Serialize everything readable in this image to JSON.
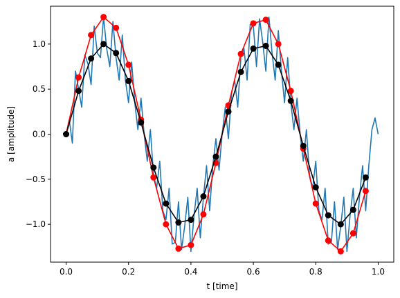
{
  "chart_data": {
    "type": "line",
    "title": "",
    "xlabel": "t [time]",
    "ylabel": "a [amplitude]",
    "xlim": [
      -0.05,
      1.05
    ],
    "ylim": [
      -1.42,
      1.42
    ],
    "xticks": [
      0.0,
      0.2,
      0.4,
      0.6,
      0.8,
      1.0
    ],
    "xtick_labels": [
      "0.0",
      "0.2",
      "0.4",
      "0.6",
      "0.8",
      "1.0"
    ],
    "yticks": [
      -1.0,
      -0.5,
      0.0,
      0.5,
      1.0
    ],
    "ytick_labels": [
      "−1.0",
      "−0.5",
      "0.0",
      "0.5",
      "1.0"
    ],
    "grid": false,
    "legend": "none",
    "series": [
      {
        "style": "line",
        "color": "#1f77b4",
        "x": [
          0.0,
          0.01,
          0.02,
          0.03,
          0.04,
          0.05,
          0.06,
          0.07,
          0.08,
          0.09,
          0.1,
          0.11,
          0.12,
          0.13,
          0.14,
          0.15,
          0.16,
          0.17,
          0.18,
          0.19,
          0.2,
          0.21,
          0.22,
          0.23,
          0.24,
          0.25,
          0.26,
          0.27,
          0.28,
          0.29,
          0.3,
          0.31,
          0.32,
          0.33,
          0.34,
          0.35,
          0.36,
          0.37,
          0.38,
          0.39,
          0.4,
          0.41,
          0.42,
          0.43,
          0.44,
          0.45,
          0.46,
          0.47,
          0.48,
          0.49,
          0.5,
          0.51,
          0.52,
          0.53,
          0.54,
          0.55,
          0.56,
          0.57,
          0.58,
          0.59,
          0.6,
          0.61,
          0.62,
          0.63,
          0.64,
          0.65,
          0.66,
          0.67,
          0.68,
          0.69,
          0.7,
          0.71,
          0.72,
          0.73,
          0.74,
          0.75,
          0.76,
          0.77,
          0.78,
          0.79,
          0.8,
          0.81,
          0.82,
          0.83,
          0.84,
          0.85,
          0.86,
          0.87,
          0.88,
          0.89,
          0.9,
          0.91,
          0.92,
          0.93,
          0.94,
          0.95,
          0.96,
          0.97,
          0.98,
          0.99,
          1.0
        ],
        "y": [
          0.0,
          0.16,
          -0.1,
          0.7,
          0.5,
          0.3,
          0.88,
          0.78,
          0.55,
          1.2,
          0.9,
          0.85,
          1.3,
          0.95,
          0.75,
          1.25,
          0.85,
          0.6,
          1.1,
          0.6,
          0.35,
          0.8,
          0.35,
          0.05,
          0.4,
          0.0,
          -0.3,
          0.05,
          -0.45,
          -0.6,
          -0.3,
          -0.85,
          -0.95,
          -0.6,
          -1.22,
          -1.2,
          -0.75,
          -1.28,
          -1.02,
          -0.7,
          -1.3,
          -0.9,
          -0.6,
          -1.15,
          -0.7,
          -0.35,
          -0.85,
          -0.35,
          -0.05,
          -0.4,
          0.0,
          0.3,
          -0.05,
          0.45,
          0.6,
          0.3,
          0.85,
          0.95,
          0.6,
          1.22,
          1.2,
          0.75,
          1.28,
          1.02,
          0.7,
          1.3,
          0.9,
          0.6,
          1.15,
          0.7,
          0.35,
          0.85,
          0.35,
          0.05,
          0.4,
          0.0,
          -0.3,
          0.05,
          -0.45,
          -0.6,
          -0.3,
          -0.85,
          -0.95,
          -0.6,
          -1.22,
          -1.2,
          -0.75,
          -1.28,
          -1.02,
          -0.7,
          -1.3,
          -0.9,
          -0.6,
          -1.15,
          -0.7,
          -0.35,
          -0.85,
          -0.35,
          0.05,
          0.18,
          0.0
        ]
      },
      {
        "style": "line-markers",
        "color": "#ff0000",
        "x": [
          0.0,
          0.04,
          0.08,
          0.12,
          0.16,
          0.2,
          0.24,
          0.28,
          0.32,
          0.36,
          0.4,
          0.44,
          0.48,
          0.52,
          0.56,
          0.6,
          0.64,
          0.68,
          0.72,
          0.76,
          0.8,
          0.84,
          0.88,
          0.92,
          0.96
        ],
        "y": [
          0.0,
          0.63,
          1.1,
          1.3,
          1.18,
          0.77,
          0.16,
          -0.48,
          -1.0,
          -1.27,
          -1.23,
          -0.89,
          -0.32,
          0.32,
          0.89,
          1.23,
          1.27,
          1.0,
          0.48,
          -0.16,
          -0.77,
          -1.18,
          -1.3,
          -1.1,
          -0.63
        ]
      },
      {
        "style": "line-markers",
        "color": "#000000",
        "x": [
          0.0,
          0.04,
          0.08,
          0.12,
          0.16,
          0.2,
          0.24,
          0.28,
          0.32,
          0.36,
          0.4,
          0.44,
          0.48,
          0.52,
          0.56,
          0.6,
          0.64,
          0.68,
          0.72,
          0.76,
          0.8,
          0.84,
          0.88,
          0.92,
          0.96
        ],
        "y": [
          0.0,
          0.48,
          0.84,
          1.0,
          0.9,
          0.59,
          0.13,
          -0.37,
          -0.77,
          -0.98,
          -0.95,
          -0.69,
          -0.25,
          0.25,
          0.69,
          0.95,
          0.98,
          0.77,
          0.37,
          -0.13,
          -0.59,
          -0.9,
          -1.0,
          -0.84,
          -0.48
        ]
      }
    ]
  }
}
